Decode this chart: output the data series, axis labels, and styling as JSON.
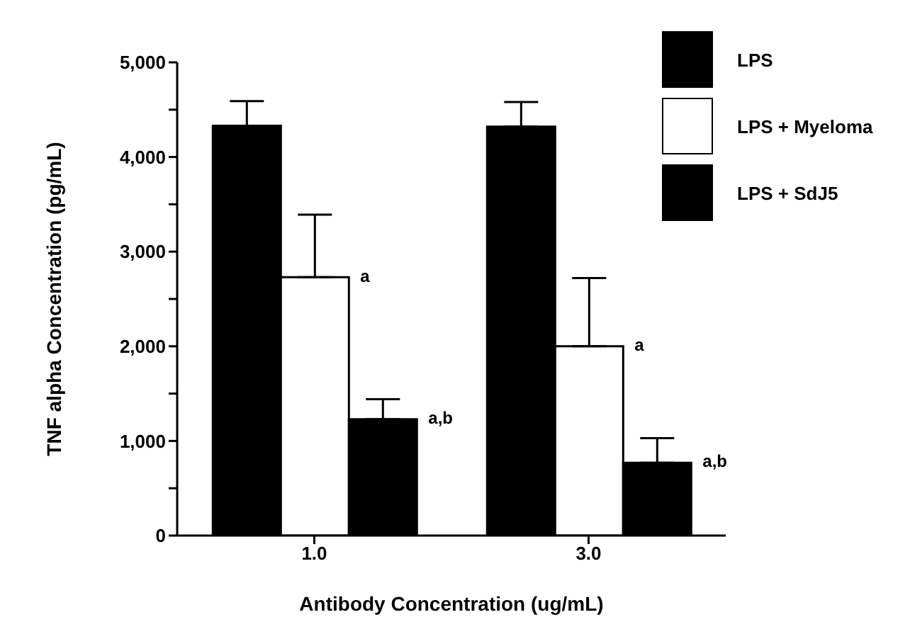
{
  "chart_data": {
    "type": "bar",
    "xlabel": "Antibody Concentration (ug/mL)",
    "ylabel": "TNF alpha Concentration (pg/mL)",
    "categories": [
      "1.0",
      "3.0"
    ],
    "series": [
      {
        "name": "LPS",
        "color": "#000000",
        "values": [
          4330,
          4320
        ],
        "errors": [
          [
            4330,
            4590
          ],
          [
            4320,
            4580
          ]
        ]
      },
      {
        "name": "LPS + Myeloma",
        "color": "#ffffff",
        "values": [
          2730,
          2000
        ],
        "errors": [
          [
            2730,
            3390
          ],
          [
            2000,
            2720
          ]
        ]
      },
      {
        "name": "LPS + SdJ5",
        "color": "#000000",
        "values": [
          1230,
          770
        ],
        "errors": [
          [
            1230,
            1440
          ],
          [
            770,
            1030
          ]
        ]
      }
    ],
    "ylim": [
      0,
      5000
    ],
    "yticks": [
      0,
      {
        "value": 500,
        "label": null
      },
      {
        "value": 1000,
        "label": "1,000"
      },
      {
        "value": 1500,
        "label": null
      },
      {
        "value": 2000,
        "label": "2,000"
      },
      {
        "value": 2500,
        "label": null
      },
      {
        "value": 3000,
        "label": "3,000"
      },
      {
        "value": 3500,
        "label": null
      },
      {
        "value": 4000,
        "label": "4,000"
      },
      {
        "value": 4500,
        "label": null
      },
      {
        "value": 5000,
        "label": "5,000"
      }
    ],
    "annotations": [
      {
        "text": "a",
        "x": "1.0",
        "y": 2730
      },
      "a,b",
      {
        "text": "a",
        "x": "3.0",
        "y": 2000
      },
      "a,b"
    ],
    "legend": "top right"
  }
}
